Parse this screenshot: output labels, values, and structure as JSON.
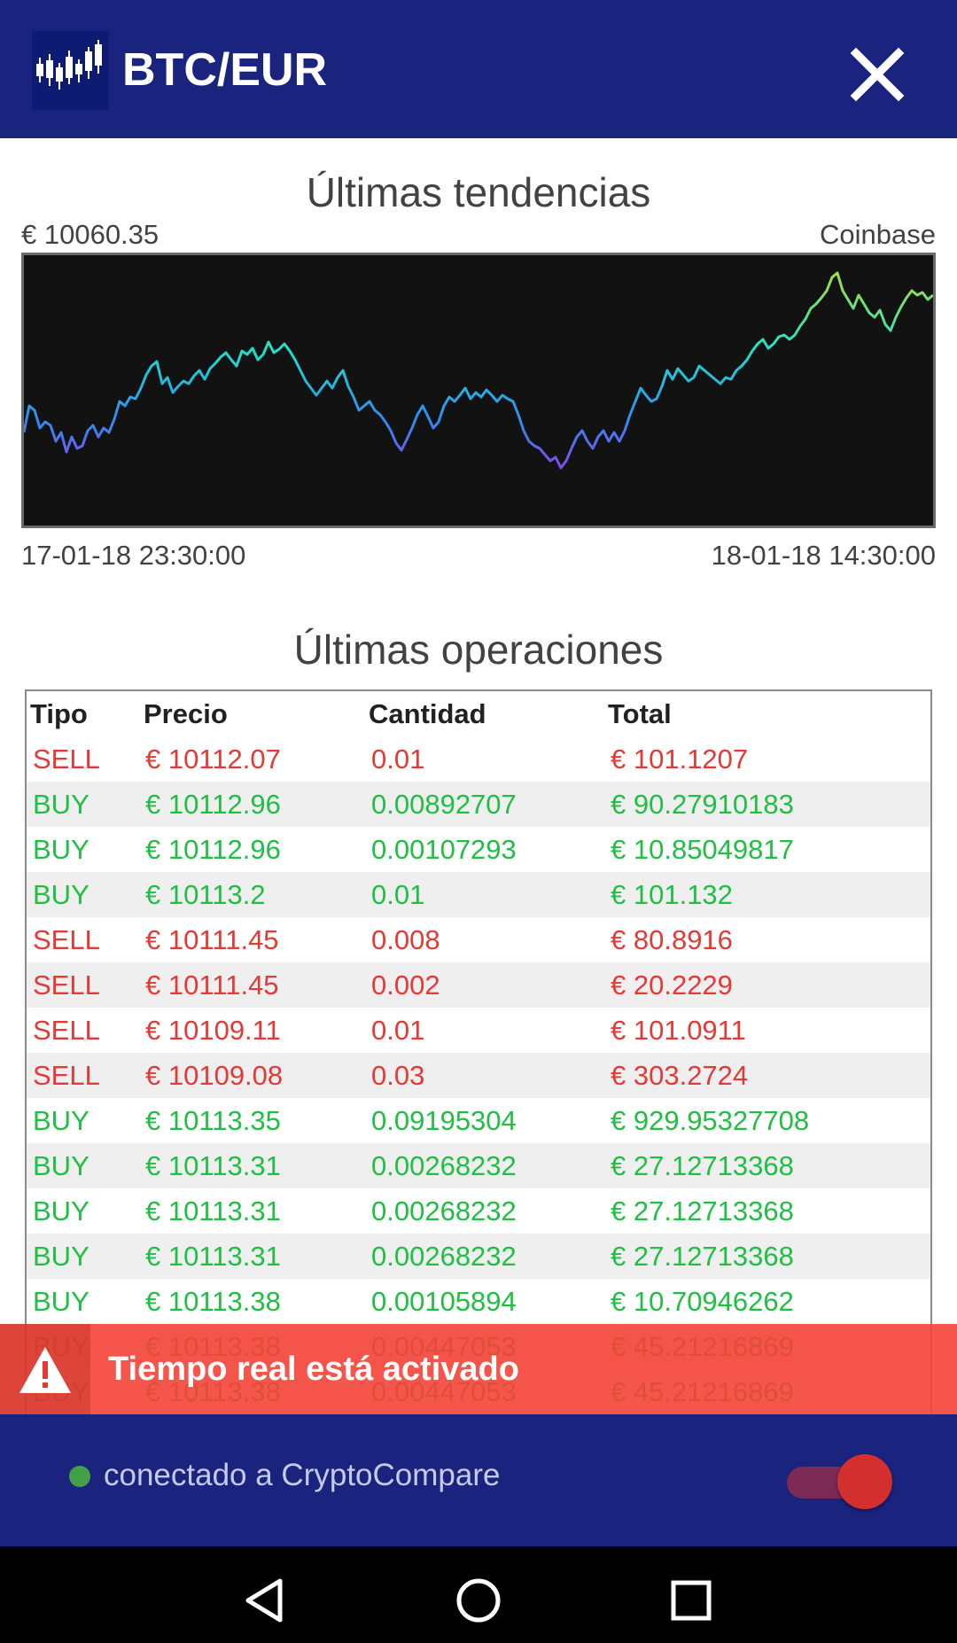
{
  "header": {
    "title": "BTC/EUR",
    "logo_icon": "candlestick-chart-icon",
    "close_icon": "close-icon"
  },
  "trend": {
    "title": "Últimas tendencias",
    "price": "€ 10060.35",
    "source": "Coinbase",
    "time_start": "17-01-18 23:30:00",
    "time_end": "18-01-18 14:30:00"
  },
  "chart_data": {
    "type": "line",
    "title": "Últimas tendencias",
    "x_start": "17-01-18 23:30:00",
    "x_end": "18-01-18 14:30:00",
    "y_axis": "hidden",
    "grid": false,
    "legend": "none",
    "line_colors": [
      "#b81ee6",
      "#2f8df0",
      "#1fe0c9",
      "#c6e01f"
    ]
  },
  "operations": {
    "title": "Últimas operaciones",
    "columns": [
      "Tipo",
      "Precio",
      "Cantidad",
      "Total"
    ],
    "rows": [
      {
        "type": "SELL",
        "price": "€ 10112.07",
        "amount": "0.01",
        "total": "€ 101.1207"
      },
      {
        "type": "BUY",
        "price": "€ 10112.96",
        "amount": "0.00892707",
        "total": "€ 90.27910183"
      },
      {
        "type": "BUY",
        "price": "€ 10112.96",
        "amount": "0.00107293",
        "total": "€ 10.85049817"
      },
      {
        "type": "BUY",
        "price": "€ 10113.2",
        "amount": "0.01",
        "total": "€ 101.132"
      },
      {
        "type": "SELL",
        "price": "€ 10111.45",
        "amount": "0.008",
        "total": "€ 80.8916"
      },
      {
        "type": "SELL",
        "price": "€ 10111.45",
        "amount": "0.002",
        "total": "€ 20.2229"
      },
      {
        "type": "SELL",
        "price": "€ 10109.11",
        "amount": "0.01",
        "total": "€ 101.0911"
      },
      {
        "type": "SELL",
        "price": "€ 10109.08",
        "amount": "0.03",
        "total": "€ 303.2724"
      },
      {
        "type": "BUY",
        "price": "€ 10113.35",
        "amount": "0.09195304",
        "total": "€ 929.95327708"
      },
      {
        "type": "BUY",
        "price": "€ 10113.31",
        "amount": "0.00268232",
        "total": "€ 27.12713368"
      },
      {
        "type": "BUY",
        "price": "€ 10113.31",
        "amount": "0.00268232",
        "total": "€ 27.12713368"
      },
      {
        "type": "BUY",
        "price": "€ 10113.31",
        "amount": "0.00268232",
        "total": "€ 27.12713368"
      },
      {
        "type": "BUY",
        "price": "€ 10113.38",
        "amount": "0.00105894",
        "total": "€ 10.70946262"
      },
      {
        "type": "BUY",
        "price": "€ 10113.38",
        "amount": "0.00447053",
        "total": "€ 45.21216869"
      },
      {
        "type": "BUY",
        "price": "€ 10113.38",
        "amount": "0.00447053",
        "total": "€ 45.21216869"
      }
    ]
  },
  "snackbar": {
    "text": "Tiempo real está activado",
    "icon": "warning-icon"
  },
  "status": {
    "text": "conectado a CryptoCompare",
    "toggle_on": true
  },
  "colors": {
    "primary": "#1a237e",
    "sell": "#e53935",
    "buy": "#1fbf43",
    "snackbar": "#f44336"
  }
}
